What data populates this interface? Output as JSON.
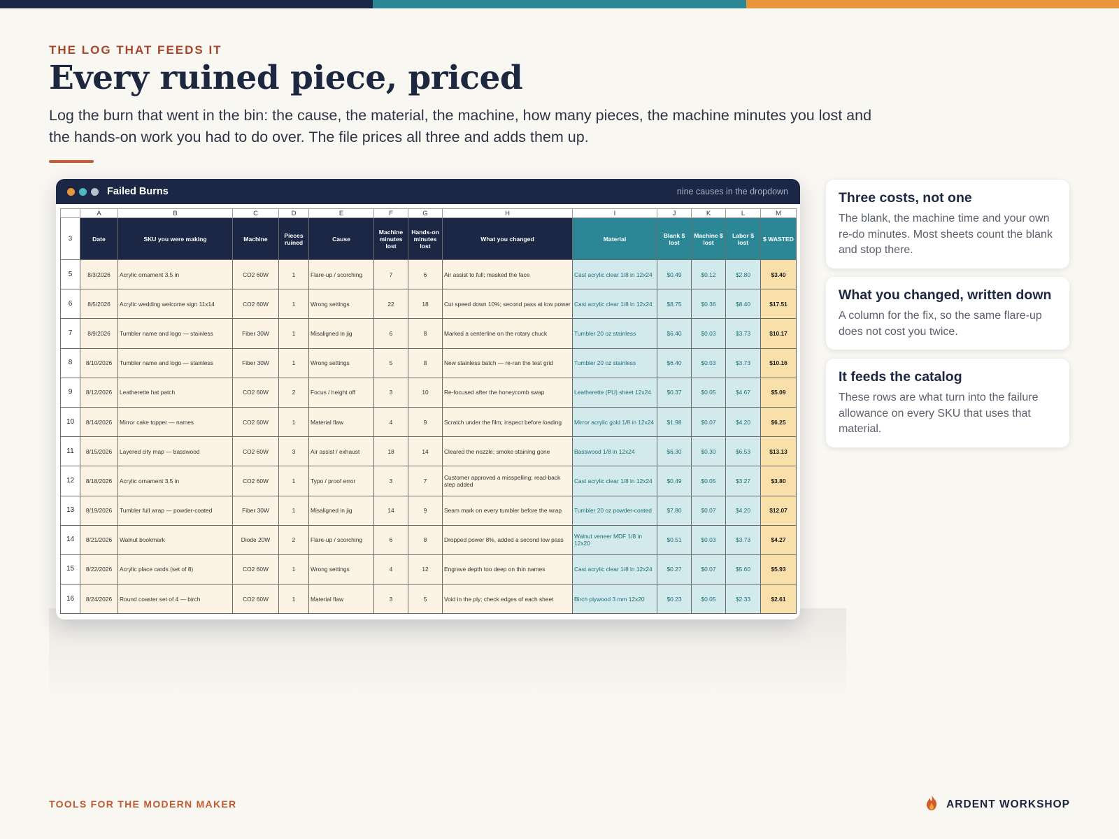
{
  "colors": {
    "navy": "#1b2744",
    "teal": "#2b8796",
    "orange": "#e8963c",
    "rust": "#c25b30"
  },
  "topbar_colors": [
    "#1b2744",
    "#2b8796",
    "#e8963c"
  ],
  "eyebrow": "THE LOG THAT FEEDS IT",
  "headline": "Every ruined piece, priced",
  "subtext": "Log the burn that went in the bin: the cause, the material, the machine, how many pieces, the machine minutes you lost and the hands-on work you had to do over. The file prices all three and adds them up.",
  "sheet": {
    "window_dots": [
      "#e8963c",
      "#4fb8c4",
      "#b9c0d0"
    ],
    "title": "Failed Burns",
    "note": "nine causes in the dropdown",
    "column_letters": [
      "A",
      "B",
      "C",
      "D",
      "E",
      "F",
      "G",
      "H",
      "I",
      "J",
      "K",
      "L",
      "M"
    ],
    "header_row_number": "3",
    "headers": [
      "Date",
      "SKU you were making",
      "Machine",
      "Pieces ruined",
      "Cause",
      "Machine minutes lost",
      "Hands-on minutes lost",
      "What you changed",
      "Material",
      "Blank $ lost",
      "Machine $ lost",
      "Labor $ lost",
      "$ WASTED"
    ],
    "rows": [
      {
        "num": "5",
        "cells": [
          "8/3/2026",
          "Acrylic ornament 3.5 in",
          "CO2 60W",
          "1",
          "Flare-up / scorching",
          "7",
          "6",
          "Air assist to full; masked the face",
          "Cast acrylic clear 1/8 in 12x24",
          "$0.49",
          "$0.12",
          "$2.80",
          "$3.40"
        ]
      },
      {
        "num": "6",
        "cells": [
          "8/5/2026",
          "Acrylic wedding welcome sign 11x14",
          "CO2 60W",
          "1",
          "Wrong settings",
          "22",
          "18",
          "Cut speed down 10%; second pass at low power",
          "Cast acrylic clear 1/8 in 12x24",
          "$8.75",
          "$0.36",
          "$8.40",
          "$17.51"
        ]
      },
      {
        "num": "7",
        "cells": [
          "8/9/2026",
          "Tumbler name and logo — stainless",
          "Fiber 30W",
          "1",
          "Misaligned in jig",
          "6",
          "8",
          "Marked a centerline on the rotary chuck",
          "Tumbler 20 oz stainless",
          "$6.40",
          "$0.03",
          "$3.73",
          "$10.17"
        ]
      },
      {
        "num": "8",
        "cells": [
          "8/10/2026",
          "Tumbler name and logo — stainless",
          "Fiber 30W",
          "1",
          "Wrong settings",
          "5",
          "8",
          "New stainless batch — re-ran the test grid",
          "Tumbler 20 oz stainless",
          "$6.40",
          "$0.03",
          "$3.73",
          "$10.16"
        ]
      },
      {
        "num": "9",
        "cells": [
          "8/12/2026",
          "Leatherette hat patch",
          "CO2 60W",
          "2",
          "Focus / height off",
          "3",
          "10",
          "Re-focused after the honeycomb swap",
          "Leatherette (PU) sheet 12x24",
          "$0.37",
          "$0.05",
          "$4.67",
          "$5.09"
        ]
      },
      {
        "num": "10",
        "cells": [
          "8/14/2026",
          "Mirror cake topper — names",
          "CO2 60W",
          "1",
          "Material flaw",
          "4",
          "9",
          "Scratch under the film; inspect before loading",
          "Mirror acrylic gold 1/8 in 12x24",
          "$1.98",
          "$0.07",
          "$4.20",
          "$6.25"
        ]
      },
      {
        "num": "11",
        "cells": [
          "8/15/2026",
          "Layered city map — basswood",
          "CO2 60W",
          "3",
          "Air assist / exhaust",
          "18",
          "14",
          "Cleared the nozzle; smoke staining gone",
          "Basswood 1/8 in 12x24",
          "$6.30",
          "$0.30",
          "$6.53",
          "$13.13"
        ]
      },
      {
        "num": "12",
        "cells": [
          "8/18/2026",
          "Acrylic ornament 3.5 in",
          "CO2 60W",
          "1",
          "Typo / proof error",
          "3",
          "7",
          "Customer approved a misspelling; read-back step added",
          "Cast acrylic clear 1/8 in 12x24",
          "$0.49",
          "$0.05",
          "$3.27",
          "$3.80"
        ]
      },
      {
        "num": "13",
        "cells": [
          "8/19/2026",
          "Tumbler full wrap — powder-coated",
          "Fiber 30W",
          "1",
          "Misaligned in jig",
          "14",
          "9",
          "Seam mark on every tumbler before the wrap",
          "Tumbler 20 oz powder-coated",
          "$7.80",
          "$0.07",
          "$4.20",
          "$12.07"
        ]
      },
      {
        "num": "14",
        "cells": [
          "8/21/2026",
          "Walnut bookmark",
          "Diode 20W",
          "2",
          "Flare-up / scorching",
          "6",
          "8",
          "Dropped power 8%, added a second low pass",
          "Walnut veneer MDF 1/8 in 12x20",
          "$0.51",
          "$0.03",
          "$3.73",
          "$4.27"
        ]
      },
      {
        "num": "15",
        "cells": [
          "8/22/2026",
          "Acrylic place cards (set of 8)",
          "CO2 60W",
          "1",
          "Wrong settings",
          "4",
          "12",
          "Engrave depth too deep on thin names",
          "Cast acrylic clear 1/8 in 12x24",
          "$0.27",
          "$0.07",
          "$5.60",
          "$5.93"
        ]
      },
      {
        "num": "16",
        "cells": [
          "8/24/2026",
          "Round coaster set of 4 — birch",
          "CO2 60W",
          "1",
          "Material flaw",
          "3",
          "5",
          "Void in the ply; check edges of each sheet",
          "Birch plywood 3 mm 12x20",
          "$0.23",
          "$0.05",
          "$2.33",
          "$2.61"
        ]
      }
    ]
  },
  "cards": [
    {
      "title": "Three costs, not one",
      "body": "The blank, the machine time and your own re-do minutes. Most sheets count the blank and stop there."
    },
    {
      "title": "What you changed, written down",
      "body": "A column for the fix, so the same flare-up does not cost you twice."
    },
    {
      "title": "It feeds the catalog",
      "body": "These rows are what turn into the failure allowance on every SKU that uses that material."
    }
  ],
  "footer": {
    "left": "TOOLS FOR THE MODERN MAKER",
    "brand": "ARDENT WORKSHOP",
    "brand_icon": "flame-icon"
  }
}
